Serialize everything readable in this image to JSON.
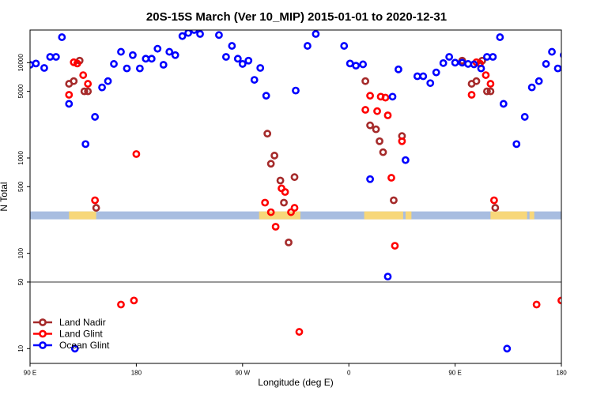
{
  "chart_data": {
    "type": "scatter",
    "title": "20S-15S March (Ver 10_MIP)   2015-01-01 to 2020-12-31",
    "xlabel": "Longitude (deg E)",
    "ylabel": "N Total",
    "x_ticks": [
      {
        "value": 90,
        "label": "90 E"
      },
      {
        "value": 180,
        "label": "180"
      },
      {
        "value": 270,
        "label": "90 W"
      },
      {
        "value": 360,
        "label": "0"
      },
      {
        "value": 450,
        "label": "90 E"
      },
      {
        "value": 540,
        "label": "180"
      }
    ],
    "xlim": [
      90,
      540
    ],
    "y_scale": "log",
    "ylim": [
      7,
      22000
    ],
    "y_ticks": [
      10,
      50,
      100,
      500,
      1000,
      5000,
      10000
    ],
    "y_tick_labels": [
      "10",
      "50",
      "100",
      "500",
      "1000",
      "5000",
      "10000"
    ],
    "reference_line_y": 50,
    "band": {
      "y": 250,
      "color_ocean": "#a8bde0",
      "color_land": "#f7d77a",
      "land_ranges": [
        [
          123,
          146
        ],
        [
          284,
          319
        ],
        [
          373,
          406
        ],
        [
          408,
          413
        ],
        [
          480,
          511
        ],
        [
          513,
          517
        ]
      ]
    },
    "legend": {
      "position": "bottom-left"
    },
    "series": [
      {
        "name": "Land Nadir",
        "color": "#a52a2a",
        "points": [
          [
            123,
            6000
          ],
          [
            127,
            6400
          ],
          [
            132,
            10500
          ],
          [
            136,
            5000
          ],
          [
            139,
            5000
          ],
          [
            146,
            300
          ],
          [
            291,
            1800
          ],
          [
            294,
            870
          ],
          [
            297,
            1060
          ],
          [
            302,
            580
          ],
          [
            305,
            340
          ],
          [
            309,
            130
          ],
          [
            314,
            630
          ],
          [
            374,
            6400
          ],
          [
            378,
            2200
          ],
          [
            383,
            2000
          ],
          [
            386,
            1500
          ],
          [
            389,
            1150
          ],
          [
            398,
            360
          ],
          [
            405,
            1700
          ],
          [
            456,
            10500
          ],
          [
            464,
            6000
          ],
          [
            468,
            6400
          ],
          [
            473,
            10500
          ],
          [
            477,
            5000
          ],
          [
            480,
            5000
          ],
          [
            484,
            300
          ]
        ]
      },
      {
        "name": "Land Glint",
        "color": "#ff0000",
        "points": [
          [
            123,
            4600
          ],
          [
            127,
            10100
          ],
          [
            130,
            9800
          ],
          [
            135,
            7400
          ],
          [
            139,
            6000
          ],
          [
            145,
            360
          ],
          [
            167,
            29
          ],
          [
            178,
            32
          ],
          [
            180,
            1100
          ],
          [
            289,
            340
          ],
          [
            294,
            270
          ],
          [
            298,
            190
          ],
          [
            303,
            480
          ],
          [
            306,
            440
          ],
          [
            311,
            270
          ],
          [
            314,
            300
          ],
          [
            318,
            15
          ],
          [
            374,
            3200
          ],
          [
            378,
            4500
          ],
          [
            384,
            3100
          ],
          [
            387,
            4400
          ],
          [
            391,
            4300
          ],
          [
            393,
            2800
          ],
          [
            396,
            620
          ],
          [
            399,
            120
          ],
          [
            405,
            1500
          ],
          [
            464,
            4600
          ],
          [
            468,
            10100
          ],
          [
            471,
            9800
          ],
          [
            476,
            7400
          ],
          [
            480,
            6000
          ],
          [
            483,
            360
          ],
          [
            519,
            29
          ],
          [
            540,
            32
          ]
        ]
      },
      {
        "name": "Ocean Glint",
        "color": "#0000ff",
        "points": [
          [
            90,
            9500
          ],
          [
            95,
            9800
          ],
          [
            102,
            8800
          ],
          [
            107,
            11500
          ],
          [
            112,
            11500
          ],
          [
            117,
            18500
          ],
          [
            123,
            3700
          ],
          [
            128,
            10
          ],
          [
            137,
            1400
          ],
          [
            145,
            2700
          ],
          [
            151,
            5500
          ],
          [
            156,
            6400
          ],
          [
            161,
            9700
          ],
          [
            167,
            13000
          ],
          [
            172,
            8700
          ],
          [
            177,
            12000
          ],
          [
            183,
            8700
          ],
          [
            188,
            11000
          ],
          [
            193,
            11000
          ],
          [
            198,
            14000
          ],
          [
            203,
            9500
          ],
          [
            208,
            13000
          ],
          [
            213,
            12000
          ],
          [
            219,
            19000
          ],
          [
            224,
            20500
          ],
          [
            229,
            22000
          ],
          [
            234,
            20000
          ],
          [
            239,
            26000
          ],
          [
            245,
            28500
          ],
          [
            250,
            19500
          ],
          [
            256,
            11500
          ],
          [
            261,
            15000
          ],
          [
            266,
            11000
          ],
          [
            270,
            9700
          ],
          [
            275,
            10500
          ],
          [
            280,
            6600
          ],
          [
            285,
            8800
          ],
          [
            290,
            4500
          ],
          [
            315,
            5100
          ],
          [
            325,
            15000
          ],
          [
            332,
            20000
          ],
          [
            337,
            25000
          ],
          [
            343,
            28500
          ],
          [
            349,
            27000
          ],
          [
            356,
            15000
          ],
          [
            361,
            9800
          ],
          [
            366,
            9300
          ],
          [
            372,
            9600
          ],
          [
            378,
            600
          ],
          [
            393,
            57
          ],
          [
            397,
            4400
          ],
          [
            402,
            8500
          ],
          [
            408,
            950
          ],
          [
            418,
            7200
          ],
          [
            423,
            7200
          ],
          [
            429,
            6100
          ],
          [
            434,
            7900
          ],
          [
            440,
            9900
          ],
          [
            445,
            11500
          ],
          [
            450,
            10000
          ],
          [
            456,
            10000
          ],
          [
            461,
            9700
          ],
          [
            466,
            9600
          ],
          [
            472,
            8700
          ],
          [
            477,
            11500
          ],
          [
            482,
            11500
          ],
          [
            488,
            18500
          ],
          [
            491,
            3700
          ],
          [
            494,
            10
          ],
          [
            502,
            1400
          ],
          [
            509,
            2700
          ],
          [
            515,
            5500
          ],
          [
            521,
            6400
          ],
          [
            527,
            9700
          ],
          [
            532,
            13000
          ],
          [
            537,
            8700
          ],
          [
            542,
            12000
          ]
        ]
      }
    ]
  }
}
